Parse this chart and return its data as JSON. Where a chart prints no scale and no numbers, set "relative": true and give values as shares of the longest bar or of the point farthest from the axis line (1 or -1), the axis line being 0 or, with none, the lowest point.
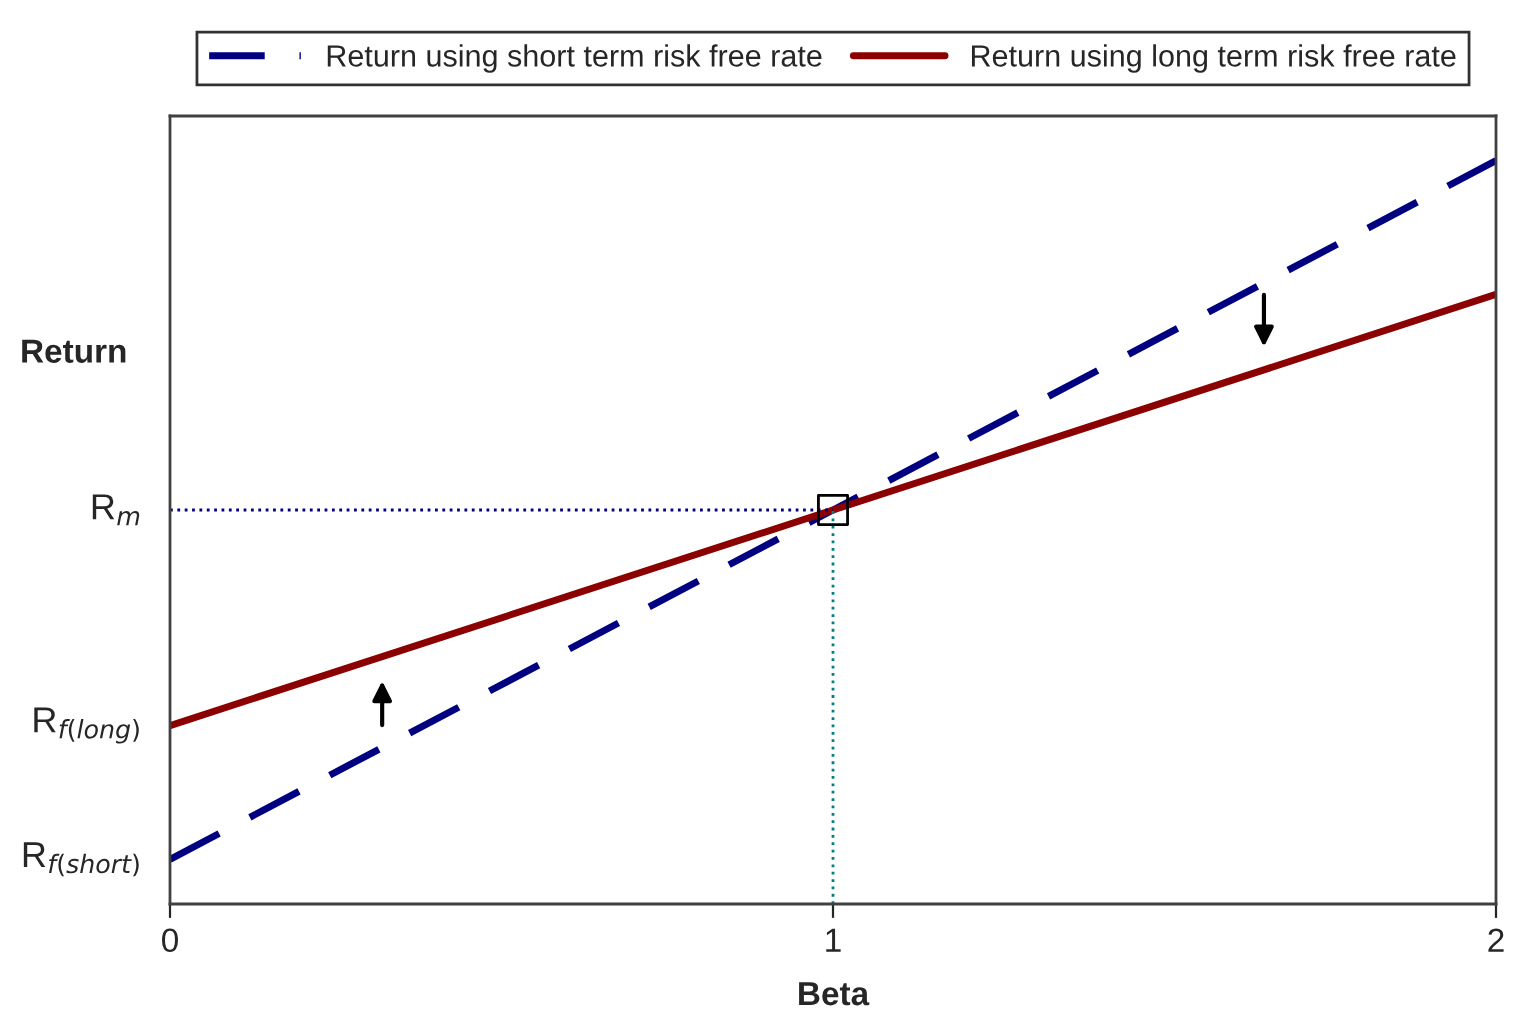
{
  "chart_data": {
    "type": "line",
    "relative": true,
    "xlabel": "Beta",
    "ylabel": "Return",
    "annotations": [
      {
        "text": "R$_{f(long)}$",
        "x": 0,
        "y": 0.24
      },
      {
        "text": "R$_{f(short)}$",
        "x": 0,
        "y": 0.06
      }
    ],
    "x": [
      0,
      1,
      2
    ],
    "xlim": [
      0,
      2
    ],
    "xticks": [
      0,
      1,
      2
    ],
    "series": [
      {
        "name": "Return using short term risk free rate",
        "color": "#000080",
        "values": [
          0.06,
          0.53,
          1.0
        ],
        "line_style": "dashed"
      },
      {
        "name": "Return using long term risk free rate",
        "color": "#8b0000",
        "values": [
          0.24,
          0.53,
          0.82
        ],
        "line_style": "solid"
      },
      {
        "type": "scatter",
        "x": [
          1
        ],
        "values": [
          0.53
        ],
        "color": "#000000",
        "marker": "square"
      }
    ],
    "ref_lines": [
      {
        "axis": "y",
        "value": 0.53,
        "label": "R$_{m}$",
        "color": "#000080",
        "line_style": "dotted"
      },
      {
        "axis": "x",
        "value": 1,
        "color": "#008080",
        "line_style": "dotted"
      }
    ],
    "legend": "top",
    "grid": false
  }
}
